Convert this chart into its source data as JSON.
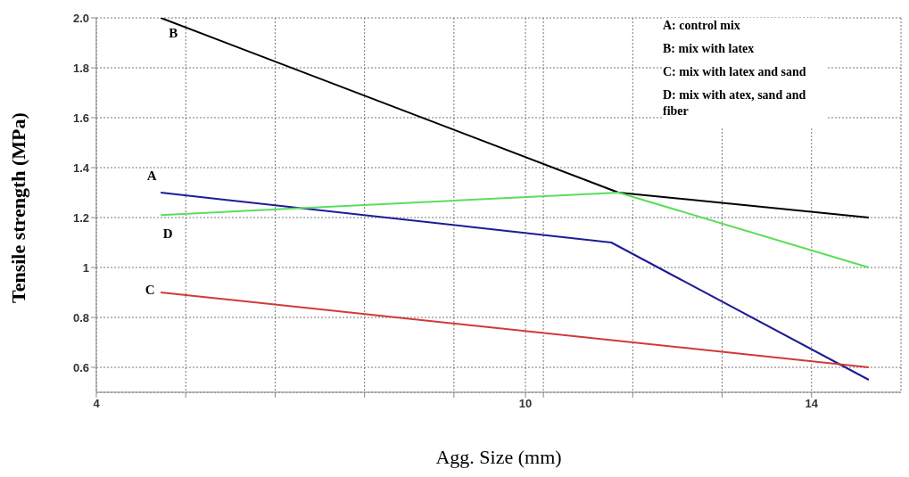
{
  "chart_data": {
    "type": "line",
    "xlabel": "Agg. Size (mm)",
    "ylabel": "Tensile strength (MPa)",
    "annotations": [
      "A: control mix",
      "B: mix with latex",
      "C: mix with latex and sand",
      "D: mix with atex, sand and fiber"
    ],
    "series": [
      {
        "name": "A",
        "color": "#1c1c96",
        "x": [
          4.9,
          11.2,
          14.8
        ],
        "values": [
          1.3,
          1.1,
          0.55
        ]
      },
      {
        "name": "B",
        "color": "#000000",
        "x": [
          4.9,
          11.3,
          14.8
        ],
        "values": [
          2.0,
          1.3,
          1.2
        ]
      },
      {
        "name": "C",
        "color": "#d03a3a",
        "x": [
          4.9,
          14.8
        ],
        "values": [
          0.9,
          0.6
        ]
      },
      {
        "name": "D",
        "color": "#5ade5a",
        "x": [
          4.9,
          11.3,
          14.8
        ],
        "values": [
          1.21,
          1.3,
          1.0
        ]
      }
    ],
    "xlim": [
      4,
      15.25
    ],
    "xticks": [
      4,
      {
        "value": 5.25,
        "label": null
      },
      {
        "value": 6.5,
        "label": null
      },
      {
        "value": 7.75,
        "label": null
      },
      {
        "value": 9,
        "label": null
      },
      10,
      {
        "value": 10.25,
        "label": null
      },
      {
        "value": 11.5,
        "label": null
      },
      {
        "value": 12.75,
        "label": null
      },
      14
    ],
    "ylim": [
      0.5,
      2.0
    ],
    "yticks": [
      0.6,
      0.8,
      1,
      1.2,
      1.4,
      1.6,
      1.8,
      {
        "value": 2,
        "label": "2.0"
      }
    ],
    "grid": true,
    "line_style": "solid",
    "marker": "none"
  }
}
